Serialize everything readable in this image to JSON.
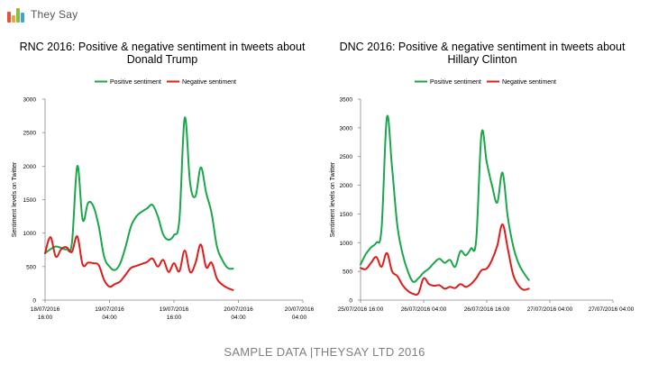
{
  "brand": {
    "name": "They Say",
    "colors": [
      "#e5533b",
      "#f2a23a",
      "#8bbd3e",
      "#3aa6d8"
    ]
  },
  "footer": "SAMPLE DATA |THEYSAY LTD 2016",
  "colors": {
    "positive": "#1aa64a",
    "negative": "#e01b1b"
  },
  "chart_data": [
    {
      "type": "line",
      "title": "RNC 2016: Positive & negative sentiment in tweets about Donald Trump",
      "title_lines": [
        "RNC 2016: Positive & negative sentiment in tweets about",
        "Donald Trump"
      ],
      "xlabel": "",
      "ylabel": "Sentiment levels on Twitter",
      "ylim": [
        0,
        3000
      ],
      "yticks": [
        "0",
        "500",
        "1000",
        "1500",
        "2000",
        "2500",
        "3000"
      ],
      "xlim": [
        0,
        48
      ],
      "xticks": [
        {
          "x": 0,
          "lines": [
            "18/07/2016",
            "16:00"
          ]
        },
        {
          "x": 12,
          "lines": [
            "19/07/2016",
            "04:00"
          ]
        },
        {
          "x": 24,
          "lines": [
            "19/07/2016",
            "16:00"
          ]
        },
        {
          "x": 36,
          "lines": [
            "20/07/2016",
            "04:00"
          ]
        }
      ],
      "legend": "top",
      "grid": false,
      "series": [
        {
          "name": "Positive sentiment",
          "color_key": "positive",
          "points": [
            [
              0,
              700
            ],
            [
              1,
              760
            ],
            [
              2,
              800
            ],
            [
              3,
              780
            ],
            [
              4,
              760
            ],
            [
              5,
              850
            ],
            [
              6,
              2000
            ],
            [
              7,
              1200
            ],
            [
              8,
              1450
            ],
            [
              9,
              1400
            ],
            [
              10,
              1100
            ],
            [
              11,
              650
            ],
            [
              12,
              500
            ],
            [
              13,
              450
            ],
            [
              14,
              550
            ],
            [
              15,
              800
            ],
            [
              16,
              1100
            ],
            [
              17,
              1250
            ],
            [
              18,
              1320
            ],
            [
              19,
              1370
            ],
            [
              20,
              1420
            ],
            [
              21,
              1250
            ],
            [
              22,
              980
            ],
            [
              23,
              900
            ],
            [
              24,
              970
            ],
            [
              25,
              1200
            ],
            [
              26,
              2720
            ],
            [
              27,
              1750
            ],
            [
              28,
              1550
            ],
            [
              29,
              1980
            ],
            [
              30,
              1600
            ],
            [
              31,
              1300
            ],
            [
              32,
              800
            ],
            [
              33,
              600
            ],
            [
              34,
              480
            ],
            [
              35,
              470
            ]
          ]
        },
        {
          "name": "Negative sentiment",
          "color_key": "negative",
          "points": [
            [
              0,
              700
            ],
            [
              1,
              940
            ],
            [
              2,
              650
            ],
            [
              3,
              760
            ],
            [
              4,
              790
            ],
            [
              5,
              720
            ],
            [
              6,
              950
            ],
            [
              7,
              530
            ],
            [
              8,
              560
            ],
            [
              9,
              550
            ],
            [
              10,
              520
            ],
            [
              11,
              300
            ],
            [
              12,
              200
            ],
            [
              13,
              240
            ],
            [
              14,
              280
            ],
            [
              15,
              380
            ],
            [
              16,
              480
            ],
            [
              17,
              510
            ],
            [
              18,
              540
            ],
            [
              19,
              570
            ],
            [
              20,
              620
            ],
            [
              21,
              500
            ],
            [
              22,
              600
            ],
            [
              23,
              420
            ],
            [
              24,
              550
            ],
            [
              25,
              430
            ],
            [
              26,
              740
            ],
            [
              27,
              420
            ],
            [
              28,
              550
            ],
            [
              29,
              830
            ],
            [
              30,
              490
            ],
            [
              31,
              560
            ],
            [
              32,
              320
            ],
            [
              33,
              230
            ],
            [
              34,
              180
            ],
            [
              35,
              150
            ]
          ]
        }
      ]
    },
    {
      "type": "line",
      "title": "DNC 2016: Positive & negative sentiment in tweets about Hillary Clinton",
      "title_lines": [
        "DNC 2016: Positive & negative sentiment in tweets about",
        "Hillary Clinton"
      ],
      "xlabel": "",
      "ylabel": "Sentiment levels on Twitter",
      "ylim": [
        0,
        3500
      ],
      "yticks": [
        "0",
        "500",
        "1000",
        "1500",
        "2000",
        "2500",
        "3000",
        "3500"
      ],
      "xlim": [
        0,
        48
      ],
      "xticks": [
        {
          "x": 0,
          "lines": [
            "25/07/2016 16:00"
          ]
        },
        {
          "x": 12,
          "lines": [
            "26/07/2016 04:00"
          ]
        },
        {
          "x": 24,
          "lines": [
            "26/07/2016 16:00"
          ]
        },
        {
          "x": 36,
          "lines": [
            "27/07/2016 04:00"
          ]
        }
      ],
      "legend": "top",
      "grid": false,
      "series": [
        {
          "name": "Positive sentiment",
          "color_key": "positive",
          "points": [
            [
              0,
              620
            ],
            [
              1,
              800
            ],
            [
              2,
              920
            ],
            [
              3,
              1000
            ],
            [
              4,
              1250
            ],
            [
              5,
              3180
            ],
            [
              6,
              2300
            ],
            [
              7,
              1300
            ],
            [
              8,
              800
            ],
            [
              9,
              500
            ],
            [
              10,
              320
            ],
            [
              11,
              380
            ],
            [
              12,
              480
            ],
            [
              13,
              550
            ],
            [
              14,
              650
            ],
            [
              15,
              720
            ],
            [
              16,
              650
            ],
            [
              17,
              700
            ],
            [
              18,
              580
            ],
            [
              19,
              850
            ],
            [
              20,
              780
            ],
            [
              21,
              900
            ],
            [
              22,
              1050
            ],
            [
              23,
              2900
            ],
            [
              24,
              2400
            ],
            [
              25,
              2000
            ],
            [
              26,
              1700
            ],
            [
              27,
              2220
            ],
            [
              28,
              1450
            ],
            [
              29,
              950
            ],
            [
              30,
              650
            ],
            [
              31,
              480
            ],
            [
              32,
              350
            ]
          ]
        },
        {
          "name": "Negative sentiment",
          "color_key": "negative",
          "points": [
            [
              0,
              560
            ],
            [
              1,
              540
            ],
            [
              2,
              650
            ],
            [
              3,
              750
            ],
            [
              4,
              580
            ],
            [
              5,
              820
            ],
            [
              6,
              500
            ],
            [
              7,
              420
            ],
            [
              8,
              260
            ],
            [
              9,
              160
            ],
            [
              10,
              110
            ],
            [
              11,
              120
            ],
            [
              12,
              380
            ],
            [
              13,
              280
            ],
            [
              14,
              250
            ],
            [
              15,
              260
            ],
            [
              16,
              200
            ],
            [
              17,
              230
            ],
            [
              18,
              210
            ],
            [
              19,
              280
            ],
            [
              20,
              230
            ],
            [
              21,
              280
            ],
            [
              22,
              380
            ],
            [
              23,
              520
            ],
            [
              24,
              550
            ],
            [
              25,
              700
            ],
            [
              26,
              950
            ],
            [
              27,
              1320
            ],
            [
              28,
              900
            ],
            [
              29,
              450
            ],
            [
              30,
              260
            ],
            [
              31,
              180
            ],
            [
              32,
              200
            ]
          ]
        }
      ]
    }
  ]
}
